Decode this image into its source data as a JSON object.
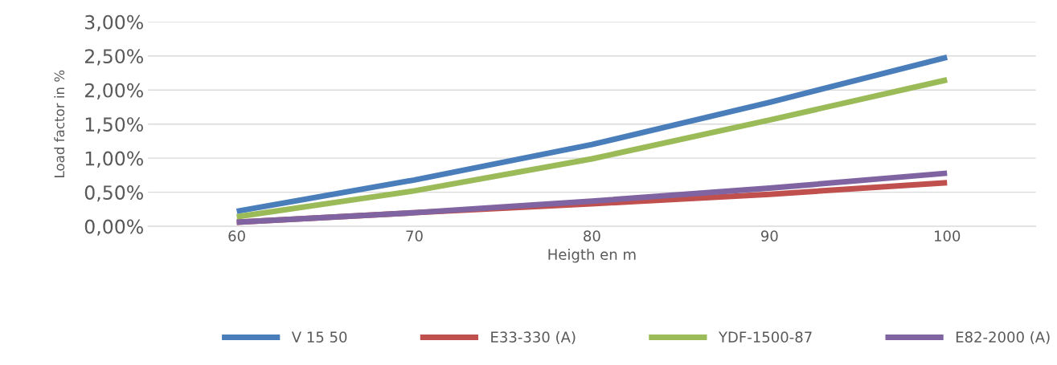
{
  "chart_data": {
    "type": "line",
    "xlabel": "Heigth en m",
    "ylabel": "Load factor in %",
    "categories": [
      "60",
      "70",
      "80",
      "90",
      "100"
    ],
    "series": [
      {
        "name": "V 15 50",
        "color": "#4a7ebb",
        "values": [
          0.22,
          0.68,
          1.2,
          1.82,
          2.48
        ]
      },
      {
        "name": "E33-330 (A)",
        "color": "#c0504d",
        "values": [
          0.06,
          0.2,
          0.33,
          0.47,
          0.64
        ]
      },
      {
        "name": "YDF-1500-87",
        "color": "#9bbb59",
        "values": [
          0.14,
          0.52,
          0.99,
          1.56,
          2.15
        ]
      },
      {
        "name": "E82-2000 (A)",
        "color": "#8064a2",
        "values": [
          0.06,
          0.2,
          0.37,
          0.56,
          0.78
        ]
      }
    ],
    "ylim": [
      0,
      3
    ],
    "yticks": [
      {
        "value": 0,
        "label": "0,00%"
      },
      {
        "value": 0.5,
        "label": "0,50%"
      },
      {
        "value": 1,
        "label": "1,00%"
      },
      {
        "value": 1.5,
        "label": "1,50%"
      },
      {
        "value": 2,
        "label": "2,00%"
      },
      {
        "value": 2.5,
        "label": "2,50%"
      },
      {
        "value": 3,
        "label": "3,00%"
      }
    ],
    "grid": "y",
    "legend": "bottom",
    "marker": "none",
    "line_style": "solid"
  }
}
